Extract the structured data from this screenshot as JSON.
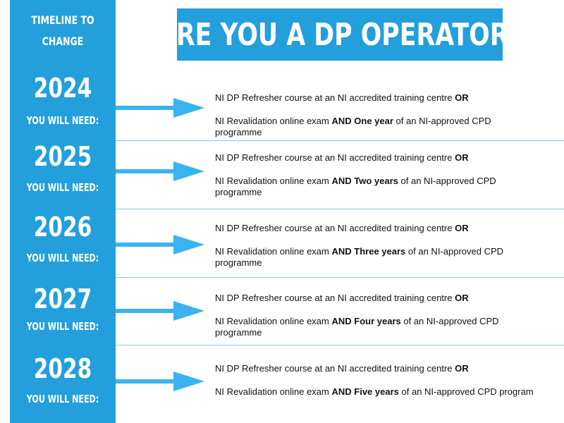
{
  "sidebar": {
    "heading_line1": "TIMELINE TO",
    "heading_line2": "CHANGE"
  },
  "banner": {
    "title": "ARE YOU A DP OPERATOR?"
  },
  "colors": {
    "accent": "#239fdc",
    "arrow": "#3bb3f0",
    "divider": "#7fc6ec"
  },
  "icons": {
    "arrow": "right-arrow-icon"
  },
  "rows": [
    {
      "year": "2024",
      "need": "YOU WILL NEED:",
      "line1": "NI DP Refresher course at an NI accredited training centre",
      "or": "OR",
      "line2_prefix": "NI Revalidation online exam",
      "line2_strong": "AND One year",
      "line2_suffix": "of an NI-approved CPD programme"
    },
    {
      "year": "2025",
      "need": "YOU WILL NEED:",
      "line1": "NI DP Refresher course at an NI accredited training centre",
      "or": "OR",
      "line2_prefix": "NI Revalidation online exam",
      "line2_strong": "AND Two years",
      "line2_suffix": "of an NI-approved CPD programme"
    },
    {
      "year": "2026",
      "need": "YOU WILL NEED:",
      "line1": "NI DP Refresher course at an NI accredited training centre",
      "or": "OR",
      "line2_prefix": "NI Revalidation online exam",
      "line2_strong": "AND Three years",
      "line2_suffix": "of an NI-approved CPD programme"
    },
    {
      "year": "2027",
      "need": "YOU WILL NEED:",
      "line1": "NI DP Refresher course at an NI accredited training centre",
      "or": "OR",
      "line2_prefix": "NI Revalidation online exam",
      "line2_strong": "AND Four years",
      "line2_suffix": "of an NI-approved CPD programme"
    },
    {
      "year": "2028",
      "need": "YOU WILL NEED:",
      "line1": "NI DP Refresher course at an NI accredited training centre",
      "or": "OR",
      "line2_prefix": "NI Revalidation online exam",
      "line2_strong": "AND Five years",
      "line2_suffix": "of an NI-approved CPD program"
    }
  ]
}
